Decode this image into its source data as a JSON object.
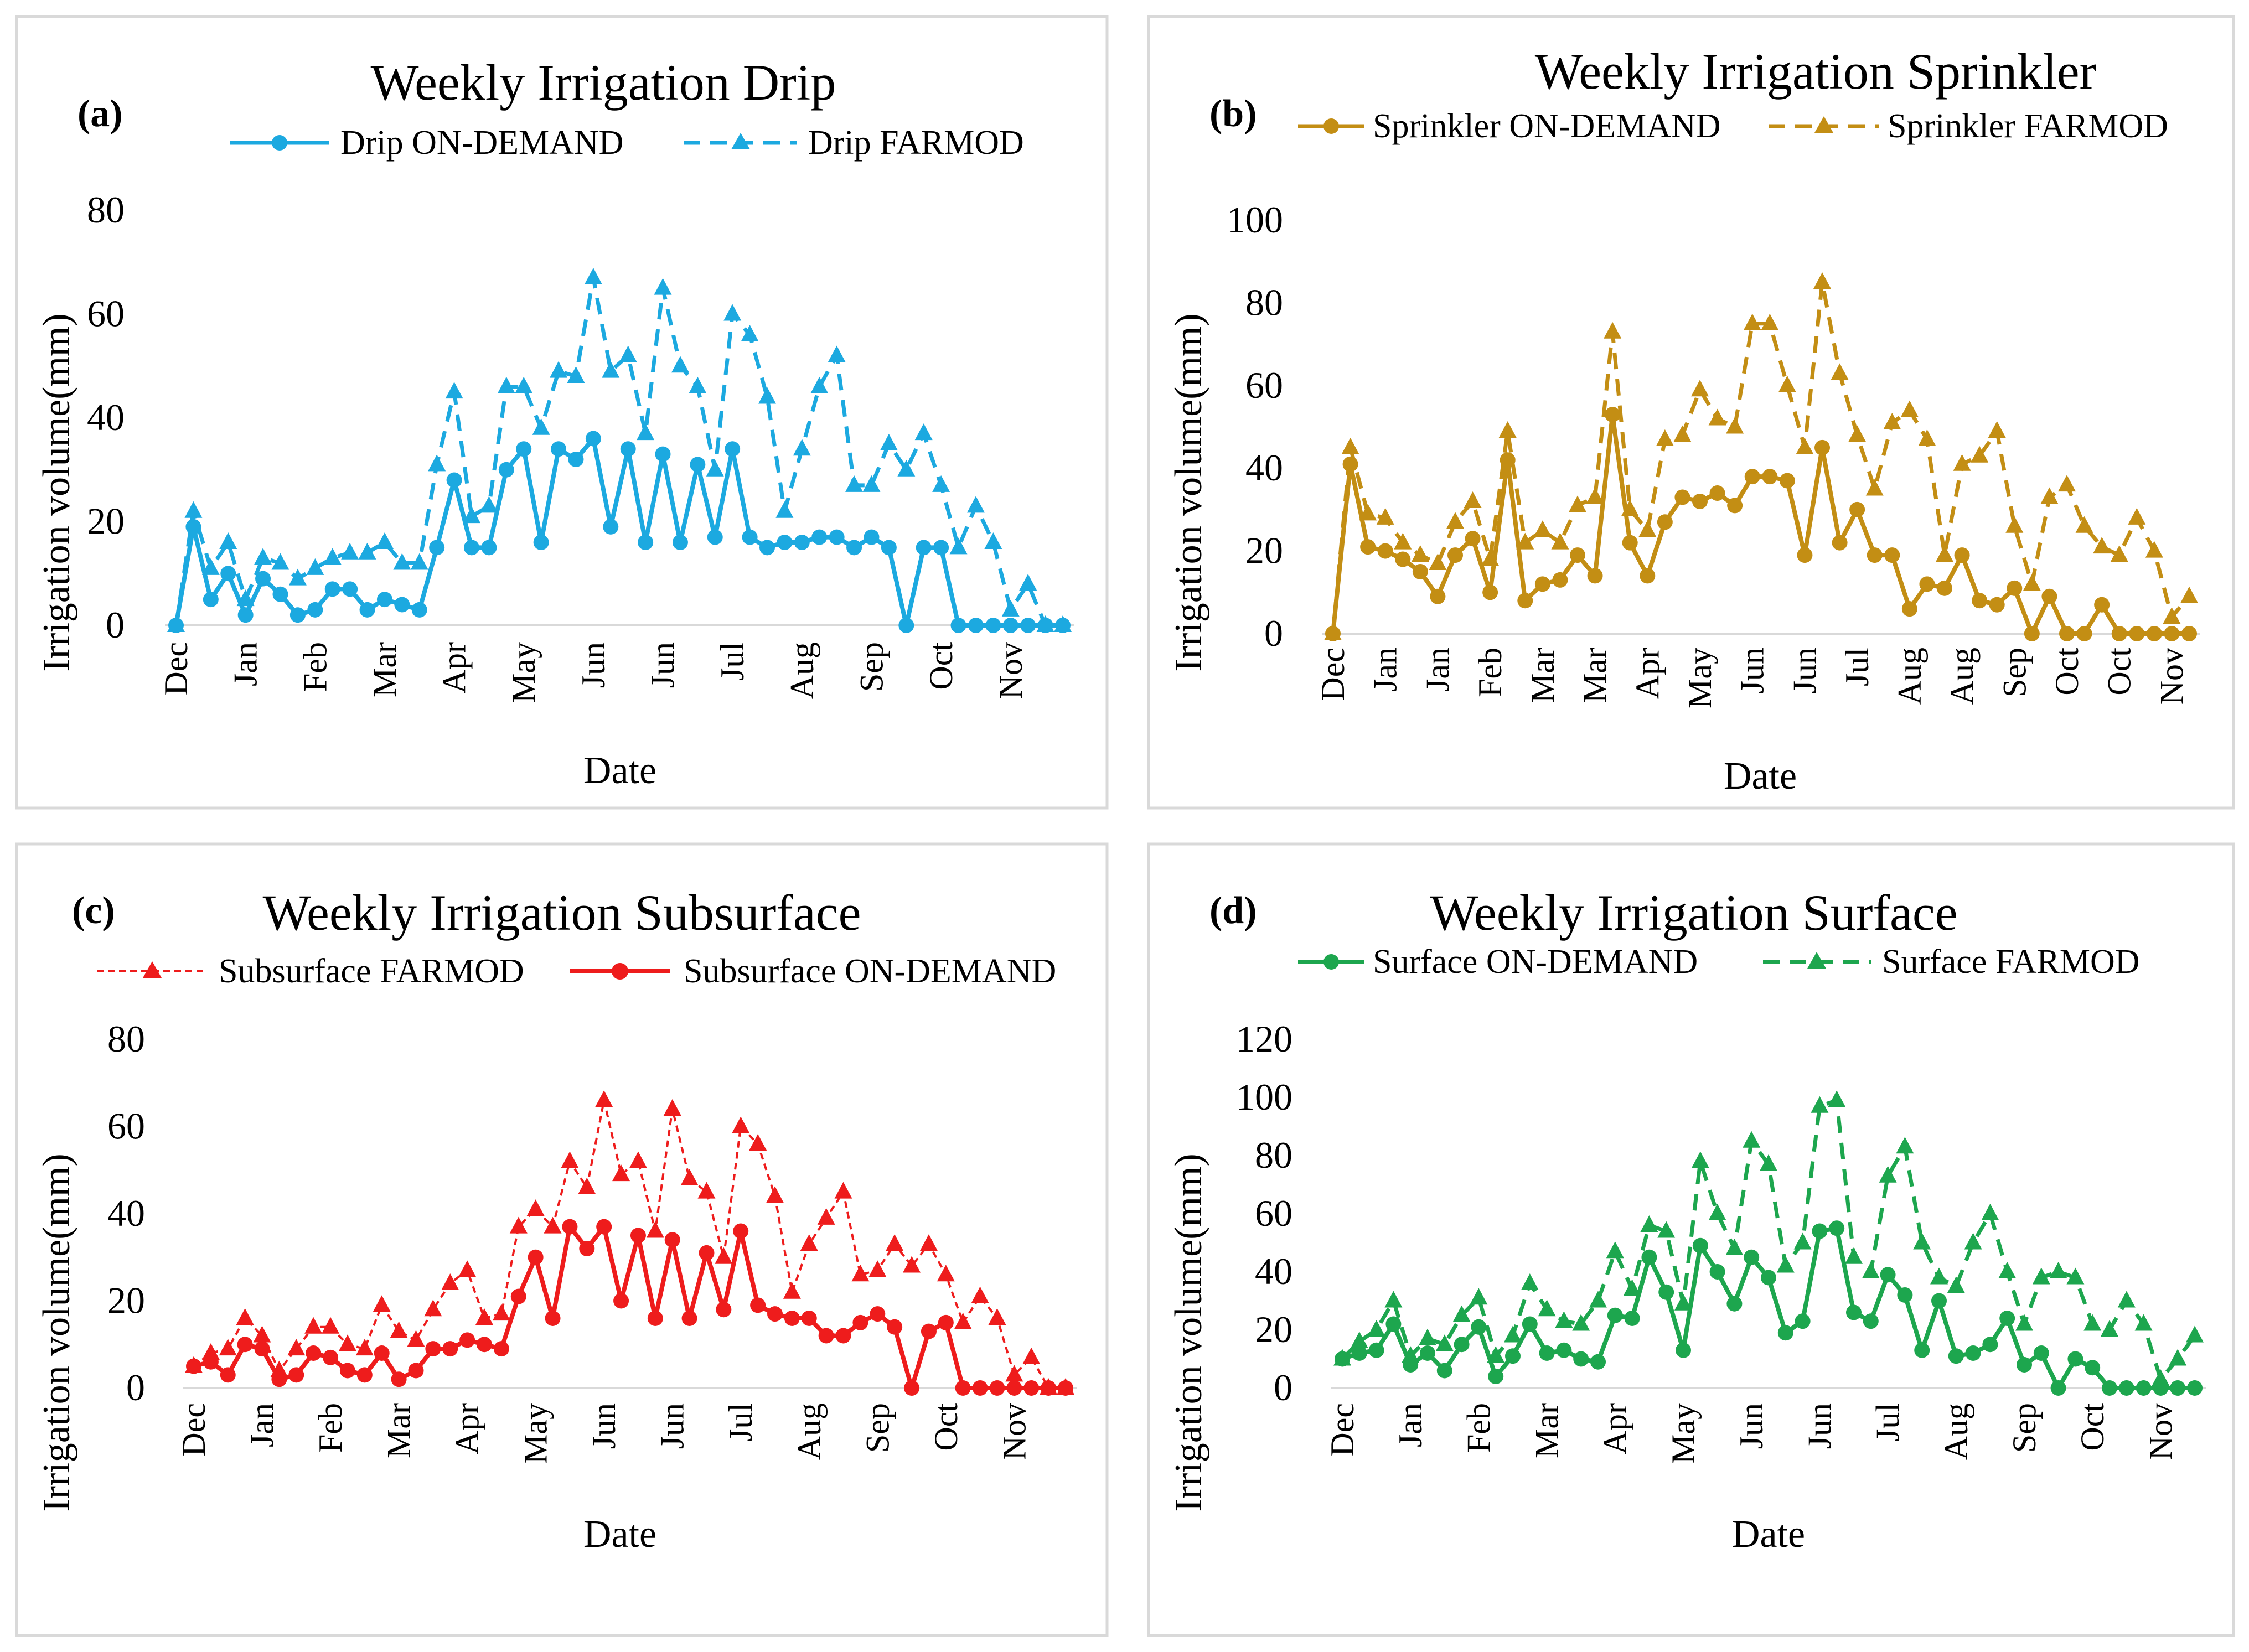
{
  "chart_data": [
    {
      "type": "line",
      "panel_label": "(a)",
      "title": "Weekly Irrigation Drip",
      "xlabel": "Date",
      "ylabel": "Irrigation volume(mm)",
      "ylim": [
        0,
        80
      ],
      "yticks": [
        0,
        20,
        40,
        60,
        80
      ],
      "grid": false,
      "legend": "top",
      "color": "#1CA9E0",
      "xtick_labels": [
        "Dec",
        "Jan",
        "Feb",
        "Mar",
        "Apr",
        "May",
        "Jun",
        "Jun",
        "Jul",
        "Aug",
        "Sep",
        "Oct",
        "Nov"
      ],
      "series": [
        {
          "name": "Drip ON-DEMAND",
          "style": "solid",
          "marker": "circle",
          "values": [
            0,
            19,
            5,
            10,
            2,
            9,
            6,
            2,
            3,
            7,
            7,
            3,
            5,
            4,
            3,
            15,
            28,
            15,
            15,
            30,
            34,
            16,
            34,
            32,
            36,
            19,
            34,
            16,
            33,
            16,
            31,
            17,
            34,
            17,
            15,
            16,
            16,
            17,
            17,
            15,
            17,
            15,
            0,
            15,
            15,
            0,
            0,
            0,
            0,
            0,
            0,
            0
          ]
        },
        {
          "name": "Drip FARMOD",
          "style": "dashed",
          "marker": "triangle",
          "values": [
            0,
            22,
            11,
            16,
            5,
            13,
            12,
            9,
            11,
            13,
            14,
            14,
            16,
            12,
            12,
            31,
            45,
            21,
            23,
            46,
            46,
            38,
            49,
            48,
            67,
            49,
            52,
            37,
            65,
            50,
            46,
            30,
            60,
            56,
            44,
            22,
            34,
            46,
            52,
            27,
            27,
            35,
            30,
            37,
            27,
            15,
            23,
            16,
            3,
            8,
            0,
            0
          ]
        }
      ]
    },
    {
      "type": "line",
      "panel_label": "(b)",
      "title": "Weekly Irrigation Sprinkler",
      "xlabel": "Date",
      "ylabel": "Irrigation volume(mm)",
      "ylim": [
        0,
        100
      ],
      "yticks": [
        0,
        20,
        40,
        60,
        80,
        100
      ],
      "grid": false,
      "legend": "top",
      "color": "#C38E14",
      "xtick_labels": [
        "Dec",
        "Jan",
        "Jan",
        "Feb",
        "Mar",
        "Mar",
        "Apr",
        "May",
        "Jun",
        "Jun",
        "Jul",
        "Aug",
        "Aug",
        "Sep",
        "Oct",
        "Oct",
        "Nov"
      ],
      "series": [
        {
          "name": "Sprinkler ON-DEMAND",
          "style": "solid",
          "marker": "circle",
          "values": [
            0,
            41,
            21,
            20,
            18,
            15,
            9,
            19,
            23,
            10,
            42,
            8,
            12,
            13,
            19,
            14,
            53,
            22,
            14,
            27,
            33,
            32,
            34,
            31,
            38,
            38,
            37,
            19,
            45,
            22,
            30,
            19,
            19,
            6,
            12,
            11,
            19,
            8,
            7,
            11,
            0,
            9,
            0,
            0,
            7,
            0,
            0,
            0,
            0,
            0
          ]
        },
        {
          "name": "Sprinkler FARMOD",
          "style": "dashed",
          "marker": "triangle",
          "values": [
            0,
            45,
            29,
            28,
            22,
            19,
            17,
            27,
            32,
            18,
            49,
            22,
            25,
            22,
            31,
            33,
            73,
            30,
            25,
            47,
            48,
            59,
            52,
            50,
            75,
            75,
            60,
            45,
            85,
            63,
            48,
            35,
            51,
            54,
            47,
            19,
            41,
            43,
            49,
            26,
            12,
            33,
            36,
            26,
            21,
            19,
            28,
            20,
            4,
            9
          ]
        }
      ]
    },
    {
      "type": "line",
      "panel_label": "(c)",
      "title": "Weekly Irrigation Subsurface",
      "xlabel": "Date",
      "ylabel": "Irrigation volume(mm)",
      "ylim": [
        0,
        80
      ],
      "yticks": [
        0,
        20,
        40,
        60,
        80
      ],
      "grid": false,
      "legend": "top",
      "color": "#EE1C1C",
      "xtick_labels": [
        "Dec",
        "Jan",
        "Feb",
        "Mar",
        "Apr",
        "May",
        "Jun",
        "Jun",
        "Jul",
        "Aug",
        "Sep",
        "Oct",
        "Nov"
      ],
      "series": [
        {
          "name": "Subsurface FARMOD",
          "style": "dotted-thin",
          "marker": "triangle",
          "values": [
            5,
            8,
            9,
            16,
            12,
            4,
            9,
            14,
            14,
            10,
            9,
            19,
            13,
            11,
            18,
            24,
            27,
            16,
            17,
            37,
            41,
            37,
            52,
            46,
            66,
            49,
            52,
            36,
            64,
            48,
            45,
            30,
            60,
            56,
            44,
            22,
            33,
            39,
            45,
            26,
            27,
            33,
            28,
            33,
            26,
            15,
            21,
            16,
            3,
            7,
            0,
            0
          ]
        },
        {
          "name": "Subsurface ON-DEMAND",
          "style": "solid",
          "marker": "circle",
          "values": [
            5,
            6,
            3,
            10,
            9,
            2,
            3,
            8,
            7,
            4,
            3,
            8,
            2,
            4,
            9,
            9,
            11,
            10,
            9,
            21,
            30,
            16,
            37,
            32,
            37,
            20,
            35,
            16,
            34,
            16,
            31,
            18,
            36,
            19,
            17,
            16,
            16,
            12,
            12,
            15,
            17,
            14,
            0,
            13,
            15,
            0,
            0,
            0,
            0,
            0,
            0,
            0
          ]
        }
      ]
    },
    {
      "type": "line",
      "panel_label": "(d)",
      "title": "Weekly Irrigation Surface",
      "xlabel": "Date",
      "ylabel": "Irrigation volume(mm)",
      "ylim": [
        0,
        120
      ],
      "yticks": [
        0,
        20,
        40,
        60,
        80,
        100,
        120
      ],
      "grid": false,
      "legend": "top",
      "color": "#1DA64E",
      "xtick_labels": [
        "Dec",
        "Jan",
        "Feb",
        "Mar",
        "Apr",
        "May",
        "Jun",
        "Jun",
        "Jul",
        "Aug",
        "Sep",
        "Oct",
        "Nov"
      ],
      "series": [
        {
          "name": "Surface ON-DEMAND",
          "style": "solid",
          "marker": "circle",
          "values": [
            10,
            12,
            13,
            22,
            8,
            12,
            6,
            15,
            21,
            4,
            11,
            22,
            12,
            13,
            10,
            9,
            25,
            24,
            45,
            33,
            13,
            49,
            40,
            29,
            45,
            38,
            19,
            23,
            54,
            55,
            26,
            23,
            39,
            32,
            13,
            30,
            11,
            12,
            15,
            24,
            8,
            12,
            0,
            10,
            7,
            0,
            0,
            0,
            0,
            0,
            0
          ]
        },
        {
          "name": "Surface FARMOD",
          "style": "dashed",
          "marker": "triangle",
          "values": [
            10,
            16,
            20,
            30,
            11,
            17,
            15,
            25,
            31,
            11,
            18,
            36,
            27,
            23,
            22,
            30,
            47,
            34,
            56,
            54,
            29,
            78,
            60,
            48,
            85,
            77,
            42,
            50,
            97,
            99,
            45,
            40,
            73,
            83,
            50,
            38,
            35,
            50,
            60,
            40,
            22,
            38,
            40,
            38,
            22,
            20,
            30,
            22,
            3,
            10,
            18
          ]
        }
      ]
    }
  ]
}
